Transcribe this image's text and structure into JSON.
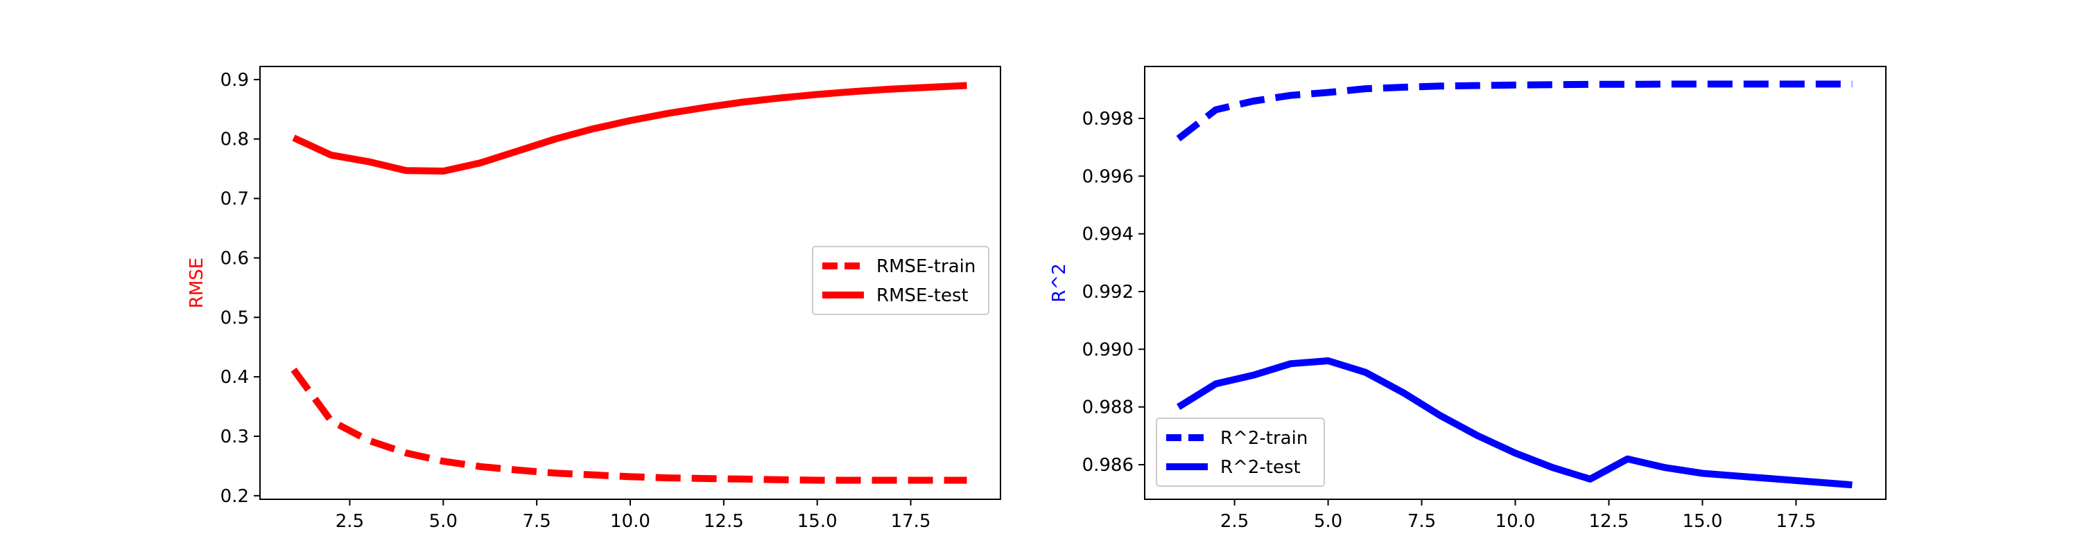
{
  "chart_data": [
    {
      "type": "line",
      "title": "",
      "xlabel": "",
      "ylabel": "RMSE",
      "ylabel_color": "#ff0000",
      "xlim": [
        0.1,
        19.9
      ],
      "ylim": [
        0.194,
        0.922
      ],
      "xticks": [
        2.5,
        5.0,
        7.5,
        10.0,
        12.5,
        15.0,
        17.5
      ],
      "xtick_labels": [
        "2.5",
        "5.0",
        "7.5",
        "10.0",
        "12.5",
        "15.0",
        "17.5"
      ],
      "yticks": [
        0.2,
        0.3,
        0.4,
        0.5,
        0.6,
        0.7,
        0.8,
        0.9
      ],
      "ytick_labels": [
        "0.2",
        "0.3",
        "0.4",
        "0.5",
        "0.6",
        "0.7",
        "0.8",
        "0.9"
      ],
      "legend_position": "center-right",
      "x": [
        1,
        2,
        3,
        4,
        5,
        6,
        7,
        8,
        9,
        10,
        11,
        12,
        13,
        14,
        15,
        16,
        17,
        18,
        19
      ],
      "series": [
        {
          "name": "RMSE-train",
          "color": "#ff0000",
          "style": "dashed",
          "values": [
            0.412,
            0.326,
            0.293,
            0.272,
            0.258,
            0.249,
            0.243,
            0.238,
            0.235,
            0.232,
            0.23,
            0.229,
            0.228,
            0.227,
            0.226,
            0.226,
            0.226,
            0.226,
            0.226
          ]
        },
        {
          "name": "RMSE-test",
          "color": "#ff0000",
          "style": "solid",
          "values": [
            0.802,
            0.773,
            0.762,
            0.747,
            0.746,
            0.76,
            0.78,
            0.8,
            0.817,
            0.831,
            0.843,
            0.853,
            0.862,
            0.869,
            0.875,
            0.88,
            0.884,
            0.887,
            0.89
          ]
        }
      ]
    },
    {
      "type": "line",
      "title": "",
      "xlabel": "",
      "ylabel": "R^2",
      "ylabel_color": "#0000ff",
      "xlim": [
        0.1,
        19.9
      ],
      "ylim": [
        0.9848,
        0.9998
      ],
      "xticks": [
        2.5,
        5.0,
        7.5,
        10.0,
        12.5,
        15.0,
        17.5
      ],
      "xtick_labels": [
        "2.5",
        "5.0",
        "7.5",
        "10.0",
        "12.5",
        "15.0",
        "17.5"
      ],
      "yticks": [
        0.986,
        0.988,
        0.99,
        0.992,
        0.994,
        0.996,
        0.998
      ],
      "ytick_labels": [
        "0.986",
        "0.988",
        "0.990",
        "0.992",
        "0.994",
        "0.996",
        "0.998"
      ],
      "legend_position": "lower-left",
      "x": [
        1,
        2,
        3,
        4,
        5,
        6,
        7,
        8,
        9,
        10,
        11,
        12,
        13,
        14,
        15,
        16,
        17,
        18,
        19
      ],
      "series": [
        {
          "name": "R^2-train",
          "color": "#0000ff",
          "style": "dashed",
          "values": [
            0.9973,
            0.9983,
            0.9986,
            0.9988,
            0.9989,
            0.99903,
            0.99908,
            0.99912,
            0.99914,
            0.99916,
            0.99917,
            0.99918,
            0.99918,
            0.99919,
            0.99919,
            0.99919,
            0.99919,
            0.99919,
            0.99919
          ]
        },
        {
          "name": "R^2-test",
          "color": "#0000ff",
          "style": "solid",
          "values": [
            0.988,
            0.9888,
            0.9891,
            0.9895,
            0.9896,
            0.9892,
            0.9885,
            0.9877,
            0.987,
            0.9864,
            0.9859,
            0.9855,
            0.9862,
            0.9859,
            0.9857,
            0.9856,
            0.9855,
            0.9854,
            0.9853
          ]
        }
      ]
    }
  ]
}
